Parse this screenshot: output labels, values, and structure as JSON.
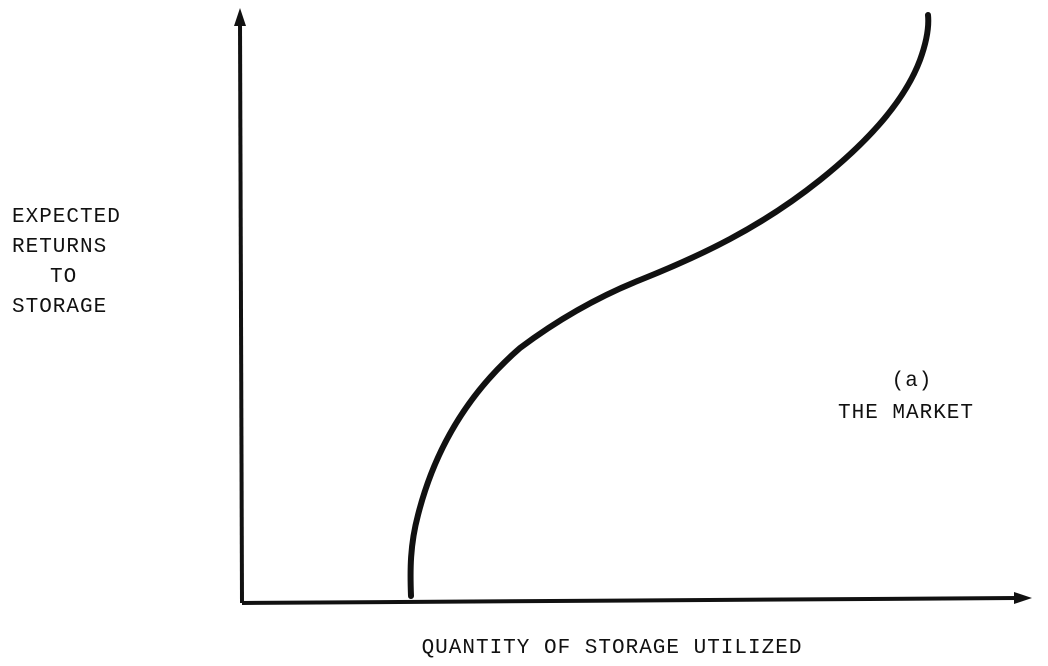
{
  "y_axis_label": {
    "lines": [
      "EXPECTED",
      "RETURNS",
      "TO",
      "STORAGE"
    ]
  },
  "x_axis_label": "QUANTITY OF STORAGE UTILIZED",
  "annotation": {
    "tag": "(a)",
    "text": "THE MARKET"
  }
}
